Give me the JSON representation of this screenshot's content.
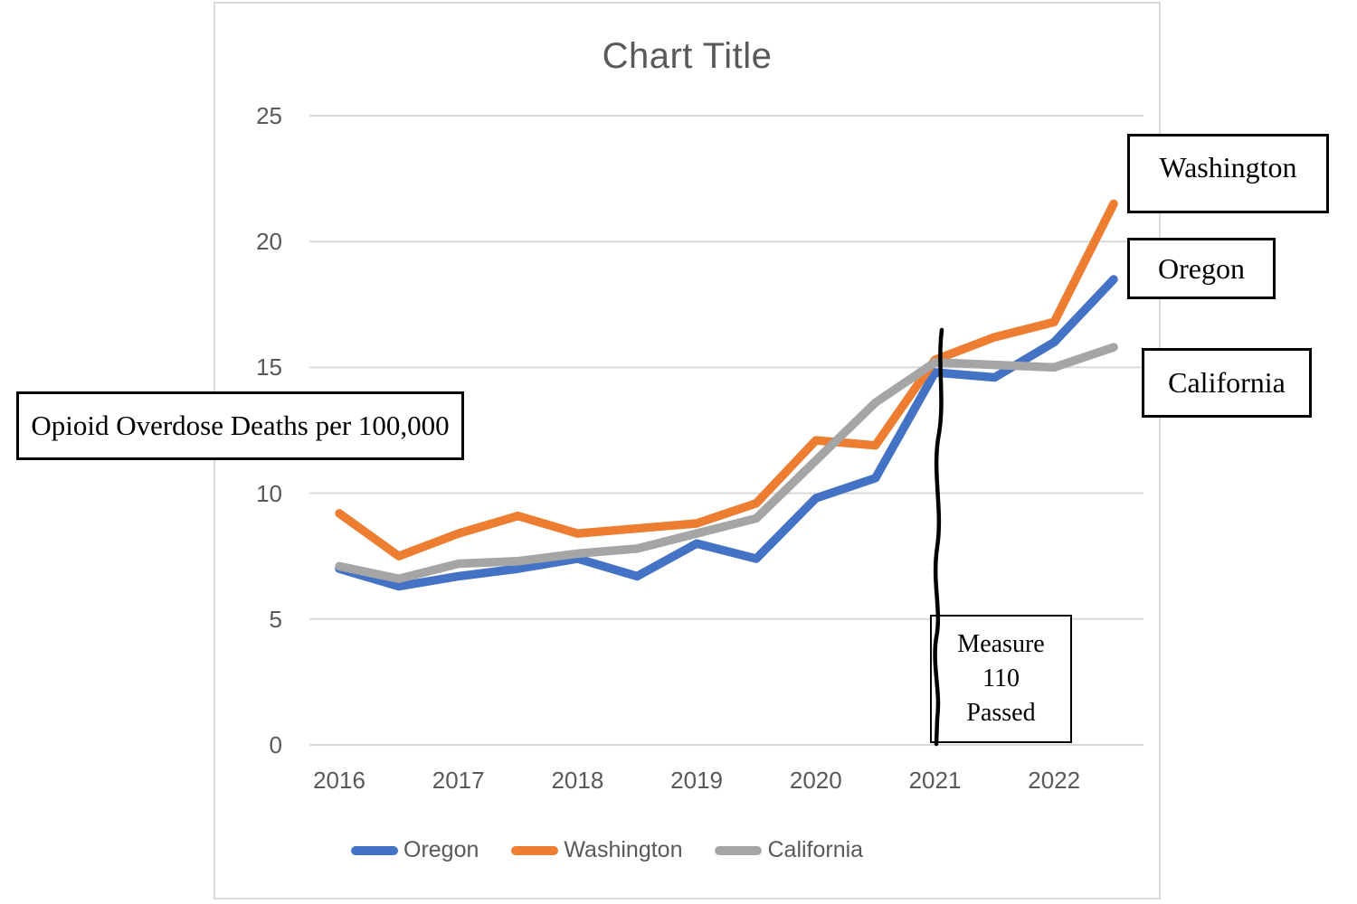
{
  "chart": {
    "title": "Chart Title",
    "legend_position": "bottom"
  },
  "chart_data": {
    "type": "line",
    "title": "Chart Title",
    "x": [
      2016,
      2016.5,
      2017,
      2017.5,
      2018,
      2018.5,
      2019,
      2019.5,
      2020,
      2020.5,
      2021,
      2021.5,
      2022,
      2022.5
    ],
    "series": [
      {
        "name": "Oregon",
        "color": "#4472C4",
        "values": [
          7.0,
          6.3,
          6.7,
          7.0,
          7.4,
          6.7,
          8.0,
          7.4,
          9.8,
          10.6,
          14.8,
          14.6,
          16.0,
          18.5
        ]
      },
      {
        "name": "Washington",
        "color": "#ED7D31",
        "values": [
          9.2,
          7.5,
          8.4,
          9.1,
          8.4,
          8.6,
          8.8,
          9.6,
          12.1,
          11.9,
          15.3,
          16.2,
          16.8,
          21.5
        ]
      },
      {
        "name": "California",
        "color": "#A5A5A5",
        "values": [
          7.1,
          6.6,
          7.2,
          7.3,
          7.6,
          7.8,
          8.4,
          9.0,
          11.3,
          13.6,
          15.2,
          15.1,
          15.0,
          15.8
        ]
      }
    ],
    "yticks": [
      0,
      5,
      10,
      15,
      20,
      25
    ],
    "xticks": [
      2016,
      2017,
      2018,
      2019,
      2020,
      2021,
      2022
    ],
    "ylim": [
      0,
      25
    ],
    "grid": true,
    "legend_position": "bottom",
    "event_line": {
      "x_year": 2021,
      "y_top": 16.4,
      "y_bottom": 0,
      "label": "Measure 110 Passed"
    }
  },
  "annotations": {
    "y_axis_label_box": "Opioid Overdose Deaths per 100,000",
    "washington_box": "Washington",
    "oregon_box": "Oregon",
    "california_box": "California",
    "measure_box": {
      "line1": "Measure",
      "line2": "110",
      "line3": "Passed"
    }
  },
  "colors": {
    "oregon": "#4472C4",
    "washington": "#ED7D31",
    "california": "#A5A5A5",
    "grid": "#D9D9D9",
    "frame_border": "#D9D9D9",
    "axis_text": "#595959",
    "title_text": "#595959",
    "event_line": "#000000"
  }
}
